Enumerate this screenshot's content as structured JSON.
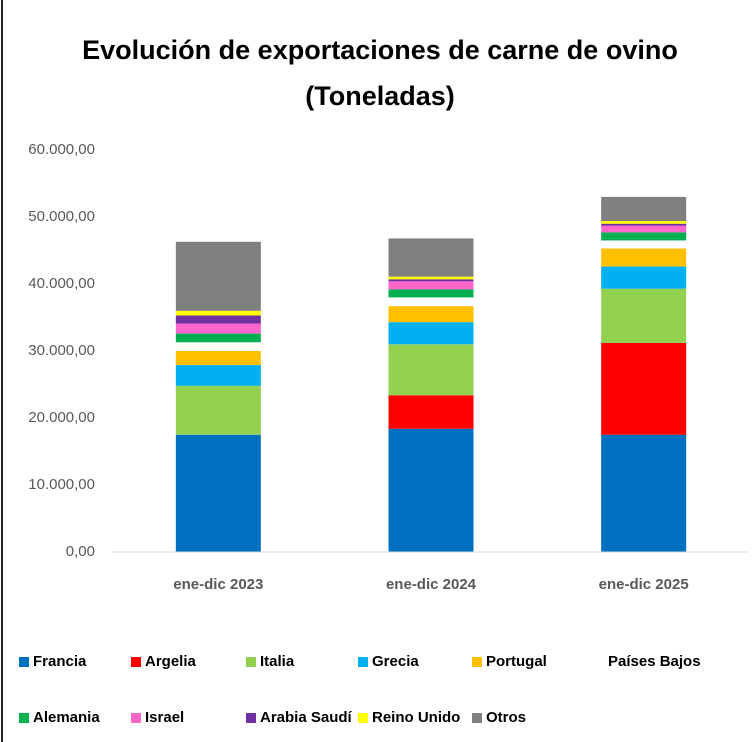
{
  "chart_data": {
    "type": "stacked_bar",
    "title": [
      "Evolución de exportaciones de carne de ovino",
      "(Toneladas)"
    ],
    "categories": [
      "ene-dic 2023",
      "ene-dic 2024",
      "ene-dic 2025"
    ],
    "series": [
      {
        "name": "Francia",
        "color": "#0070c0",
        "values": [
          17500,
          18400,
          17500
        ]
      },
      {
        "name": "Argelia",
        "color": "#ff0000",
        "values": [
          0,
          5000,
          13700
        ]
      },
      {
        "name": "Italia",
        "color": "#92d050",
        "values": [
          7300,
          7600,
          8100
        ]
      },
      {
        "name": "Grecia",
        "color": "#00b0f0",
        "values": [
          3100,
          3300,
          3300
        ]
      },
      {
        "name": "Portugal",
        "color": "#ffc000",
        "values": [
          2100,
          2400,
          2700
        ]
      },
      {
        "name": "Países Bajos",
        "color": "#ffffff",
        "values": [
          1300,
          1300,
          1200
        ]
      },
      {
        "name": "Alemania",
        "color": "#00b050",
        "values": [
          1300,
          1200,
          1200
        ]
      },
      {
        "name": "Israel",
        "color": "#ff66cc",
        "values": [
          1500,
          1200,
          1000
        ]
      },
      {
        "name": "Arabia Saudí",
        "color": "#7030a0",
        "values": [
          1200,
          300,
          300
        ]
      },
      {
        "name": "Reino Unido",
        "color": "#ffff00",
        "values": [
          700,
          400,
          400
        ]
      },
      {
        "name": "Otros",
        "color": "#808080",
        "values": [
          10300,
          5700,
          3600
        ]
      }
    ],
    "ylim": [
      0,
      60000
    ],
    "yticks": [
      {
        "value": 0,
        "label": "0,00"
      },
      {
        "value": 10000,
        "label": "10.000,00"
      },
      {
        "value": 20000,
        "label": "20.000,00"
      },
      {
        "value": 30000,
        "label": "30.000,00"
      },
      {
        "value": 40000,
        "label": "40.000,00"
      },
      {
        "value": 50000,
        "label": "50.000,00"
      },
      {
        "value": 60000,
        "label": "60.000,00"
      }
    ],
    "grid": false,
    "legend": "bottom"
  }
}
